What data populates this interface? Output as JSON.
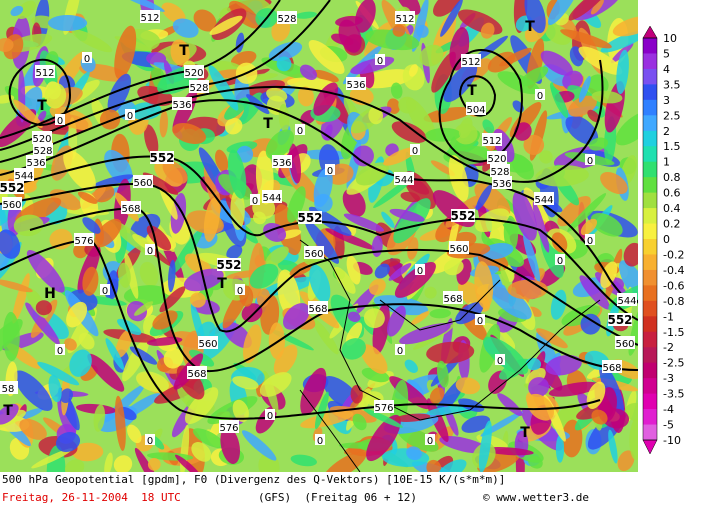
{
  "map": {
    "contour_labels": [
      "512",
      "512",
      "520",
      "528",
      "536",
      "520",
      "528",
      "536",
      "544",
      "552",
      "560",
      "552",
      "560",
      "568",
      "576",
      "544",
      "552",
      "560",
      "552",
      "560",
      "568",
      "576",
      "576",
      "568",
      "568",
      "560",
      "552",
      "544",
      "536",
      "536",
      "528",
      "512",
      "512",
      "504",
      "512",
      "520",
      "528",
      "536",
      "544",
      "544",
      "552",
      "560",
      "568",
      "58"
    ],
    "zero_labels": [
      "0",
      "0",
      "0",
      "0",
      "0",
      "0",
      "0",
      "0",
      "0",
      "0",
      "0",
      "0",
      "0",
      "0",
      "0",
      "0",
      "0",
      "0",
      "0",
      "0",
      "0",
      "0",
      "0",
      "0"
    ],
    "pressure_centers": [
      "T",
      "T",
      "T",
      "T",
      "T",
      "T",
      "T",
      "T",
      "H"
    ],
    "colorbar": {
      "labels": [
        "10",
        "5",
        "4",
        "3.5",
        "3",
        "2.5",
        "2",
        "1.5",
        "1",
        "0.8",
        "0.6",
        "0.4",
        "0.2",
        "0",
        "-0.2",
        "-0.4",
        "-0.6",
        "-0.8",
        "-1",
        "-1.5",
        "-2",
        "-2.5",
        "-3",
        "-3.5",
        "-4",
        "-5",
        "-10"
      ]
    },
    "footer": {
      "line1": "500 hPa Geopotential [gpdm], F0 (Divergenz des Q-Vektors) [10E-15 K/(s*m*m)]",
      "date": "Freitag, 26-11-2004  18 UTC",
      "model": "(GFS)  (Freitag 06 + 12)",
      "credit": "© www.wetter3.de"
    }
  }
}
